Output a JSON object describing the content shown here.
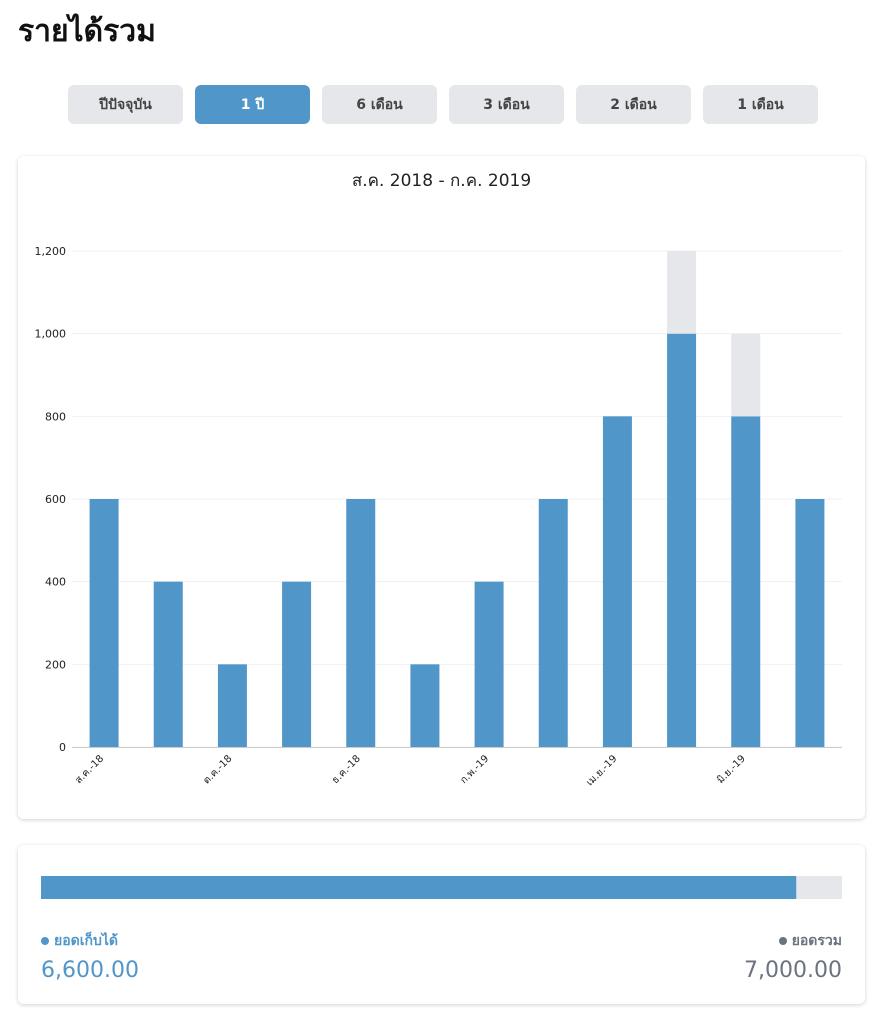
{
  "header": {
    "title": "รายได้รวม"
  },
  "tabs": {
    "items": [
      "ปีปัจจุบัน",
      "1 ปี",
      "6 เดือน",
      "3 เดือน",
      "2 เดือน",
      "1 เดือน"
    ],
    "active": 1
  },
  "chart_data": {
    "type": "stacked-bar",
    "title": "ส.ค. 2018 - ก.ค. 2019",
    "categories": [
      "ส.ค.-18",
      null,
      "ต.ค.-18",
      null,
      "ธ.ค.-18",
      null,
      "ก.พ.-19",
      null,
      "เม.ย.-19",
      null,
      "มิ.ย.-19",
      null
    ],
    "series": [
      {
        "color": "#5196c9",
        "values": [
          600,
          400,
          200,
          400,
          600,
          200,
          400,
          600,
          800,
          1000,
          800,
          600
        ]
      },
      {
        "color": "#e5e7eb",
        "values": [
          0,
          0,
          0,
          0,
          0,
          0,
          0,
          0,
          0,
          200,
          200,
          0
        ]
      }
    ],
    "ylim": [
      0,
      1200
    ],
    "yticks": [
      0,
      200,
      400,
      600,
      800,
      {
        "value": 1000,
        "label": "1,000"
      },
      {
        "value": 1200,
        "label": "1,200"
      }
    ],
    "grid": true
  },
  "summary": {
    "collected": {
      "label": "ยอดเก็บได้",
      "value": 6600,
      "value_label": "6,600.00",
      "color": "#5196c9"
    },
    "total": {
      "label": "ยอดรวม",
      "value": 7000,
      "value_label": "7,000.00",
      "color": "#6b7280",
      "bar_color": "#e5e7eb"
    }
  }
}
